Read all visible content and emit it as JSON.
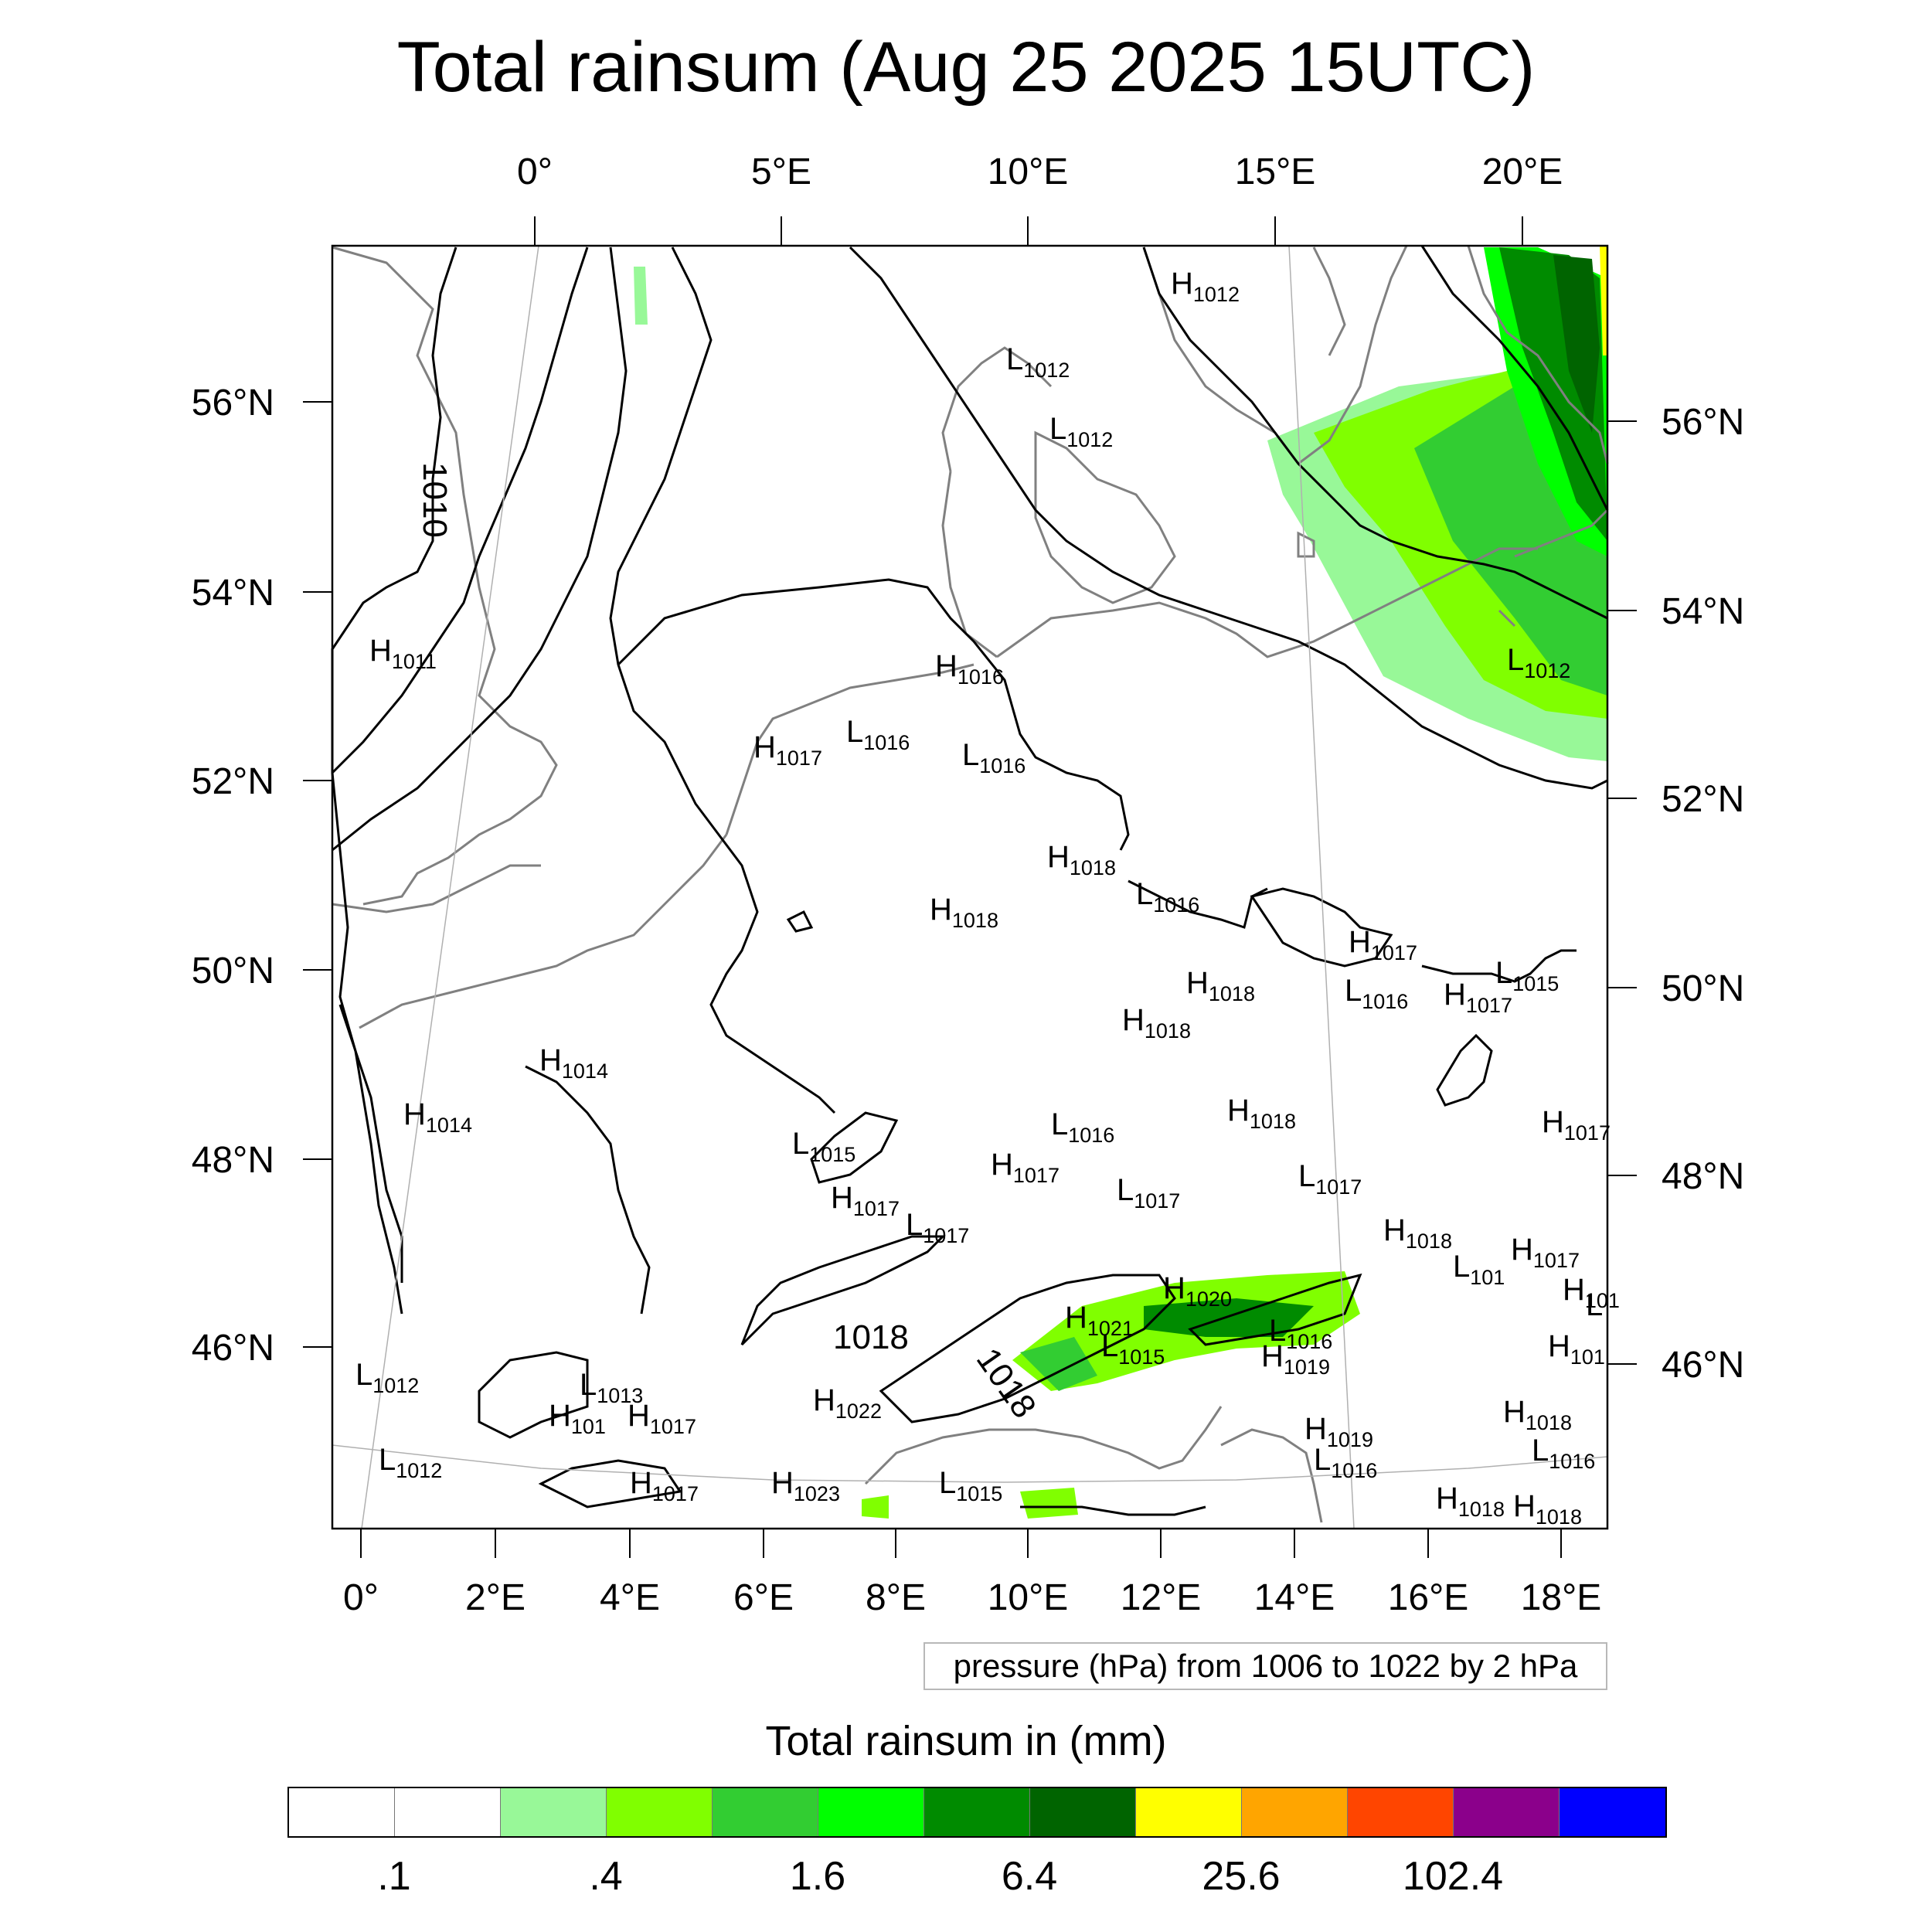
{
  "title": "Total rainsum (Aug 25 2025 15UTC)",
  "top_lon_ticks": [
    "0°",
    "5°E",
    "10°E",
    "15°E",
    "20°E"
  ],
  "bottom_lon_ticks": [
    "0°",
    "2°E",
    "4°E",
    "6°E",
    "8°E",
    "10°E",
    "12°E",
    "14°E",
    "16°E",
    "18°E"
  ],
  "left_lat_ticks": [
    "56°N",
    "54°N",
    "52°N",
    "50°N",
    "48°N",
    "46°N"
  ],
  "right_lat_ticks": [
    "56°N",
    "54°N",
    "52°N",
    "50°N",
    "48°N",
    "46°N"
  ],
  "contour_line_labels": [
    "1010",
    "1018",
    "1018"
  ],
  "pressure_centers": [
    {
      "type": "H",
      "value": "1012"
    },
    {
      "type": "L",
      "value": "1012"
    },
    {
      "type": "L",
      "value": "1012"
    },
    {
      "type": "H",
      "value": "1011"
    },
    {
      "type": "L",
      "value": "1012"
    },
    {
      "type": "H",
      "value": "1016"
    },
    {
      "type": "H",
      "value": "1017"
    },
    {
      "type": "L",
      "value": "1016"
    },
    {
      "type": "L",
      "value": "1016"
    },
    {
      "type": "H",
      "value": "1018"
    },
    {
      "type": "H",
      "value": "1018"
    },
    {
      "type": "L",
      "value": "1016"
    },
    {
      "type": "H",
      "value": "1017"
    },
    {
      "type": "L",
      "value": "1015"
    },
    {
      "type": "H",
      "value": "1018"
    },
    {
      "type": "L",
      "value": "1016"
    },
    {
      "type": "H",
      "value": "1017"
    },
    {
      "type": "H",
      "value": "1018"
    },
    {
      "type": "H",
      "value": "1014"
    },
    {
      "type": "H",
      "value": "1014"
    },
    {
      "type": "H",
      "value": "1018"
    },
    {
      "type": "L",
      "value": "1016"
    },
    {
      "type": "H",
      "value": "1017"
    },
    {
      "type": "L",
      "value": "1015"
    },
    {
      "type": "H",
      "value": "1017"
    },
    {
      "type": "H",
      "value": "1017"
    },
    {
      "type": "L",
      "value": "1017"
    },
    {
      "type": "L",
      "value": "1017"
    },
    {
      "type": "L",
      "value": "1017"
    },
    {
      "type": "H",
      "value": "1018"
    },
    {
      "type": "L",
      "value": "101"
    },
    {
      "type": "H",
      "value": "1017"
    },
    {
      "type": "H",
      "value": "1020"
    },
    {
      "type": "H",
      "value": "1021"
    },
    {
      "type": "L",
      "value": "1016"
    },
    {
      "type": "L",
      "value": "1015"
    },
    {
      "type": "H",
      "value": "1019"
    },
    {
      "type": "H",
      "value": "1022"
    },
    {
      "type": "L",
      "value": "1012"
    },
    {
      "type": "L",
      "value": "1013"
    },
    {
      "type": "H",
      "value": "101"
    },
    {
      "type": "H",
      "value": "1017"
    },
    {
      "type": "L",
      "value": "1012"
    },
    {
      "type": "H",
      "value": "1017"
    },
    {
      "type": "H",
      "value": "1023"
    },
    {
      "type": "L",
      "value": "1015"
    },
    {
      "type": "H",
      "value": "1019"
    },
    {
      "type": "L",
      "value": "1016"
    },
    {
      "type": "H",
      "value": "1018"
    },
    {
      "type": "L",
      "value": "1016"
    },
    {
      "type": "H",
      "value": "1018"
    },
    {
      "type": "H",
      "value": "1018"
    },
    {
      "type": "H",
      "value": "101"
    },
    {
      "type": "H",
      "value": "101"
    },
    {
      "type": "L",
      "value": ""
    }
  ],
  "info_text": "pressure (hPa) from 1006 to 1022 by 2 hPa",
  "colorbar": {
    "title": "Total rainsum in (mm)",
    "colors": [
      "#ffffff",
      "#ffffff",
      "#98f898",
      "#80ff00",
      "#32cd32",
      "#00ff00",
      "#008b00",
      "#006400",
      "#ffff00",
      "#ffa500",
      "#ff4500",
      "#8b008b",
      "#0000ff"
    ],
    "labels": [
      ".1",
      ".4",
      "1.6",
      "6.4",
      "25.6",
      "102.4"
    ]
  },
  "colors": {
    "coastline": "#808080",
    "isobar": "#000000",
    "grid": "#b0b0b0"
  }
}
